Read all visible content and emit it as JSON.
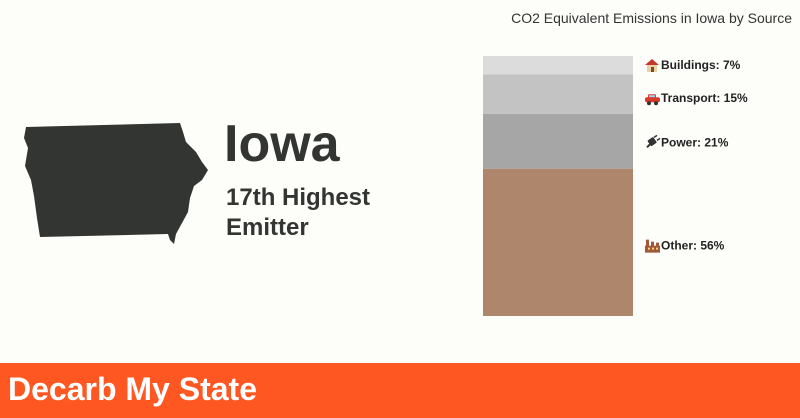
{
  "state": {
    "name": "Iowa",
    "rank_text": "17th Highest Emitter",
    "map_color": "#333533"
  },
  "footer": {
    "title": "Decarb My State",
    "color": "#ff5722"
  },
  "chart_data": {
    "type": "bar",
    "stacked": true,
    "title": "CO2 Equivalent Emissions in Iowa by Source",
    "unit": "%",
    "series": [
      {
        "name": "Buildings",
        "value": 7,
        "label": "Buildings: 7%",
        "icon": "house-icon",
        "color": "#dcdcdc"
      },
      {
        "name": "Transport",
        "value": 15,
        "label": "Transport: 15%",
        "icon": "car-icon",
        "color": "#c3c3c3"
      },
      {
        "name": "Power",
        "value": 21,
        "label": "Power: 21%",
        "icon": "plug-icon",
        "color": "#a6a6a6"
      },
      {
        "name": "Other",
        "value": 56,
        "label": "Other: 56%",
        "icon": "factory-icon",
        "color": "#ae866b"
      }
    ]
  }
}
